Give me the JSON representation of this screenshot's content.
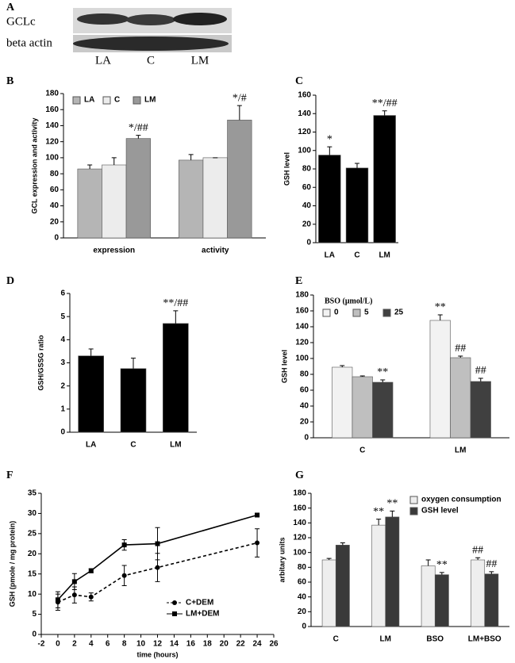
{
  "blot": {
    "panel": "A",
    "rows": [
      "GCLc",
      "beta actin"
    ],
    "lanes": [
      "LA",
      "C",
      "LM"
    ]
  },
  "chart_data": [
    {
      "type": "bar",
      "panel": "B",
      "y_label": "GCL expression and activity",
      "categories": [
        "expression",
        "activity"
      ],
      "series": [
        {
          "name": "LA",
          "color": "#b5b5b5",
          "values": [
            86,
            97
          ],
          "errors": [
            5,
            7
          ],
          "significance": [
            null,
            null
          ]
        },
        {
          "name": "C",
          "color": "#ececec",
          "values": [
            91,
            100
          ],
          "errors": [
            9,
            0
          ],
          "significance": [
            null,
            null
          ]
        },
        {
          "name": "LM",
          "color": "#999999",
          "values": [
            124,
            147
          ],
          "errors": [
            4,
            18
          ],
          "significance": [
            "*/##",
            "*/#"
          ]
        }
      ],
      "ylim": [
        0,
        180
      ],
      "yticks": [
        0,
        20,
        40,
        60,
        80,
        100,
        120,
        140,
        160,
        180
      ],
      "legend": "upper left"
    },
    {
      "type": "bar",
      "panel": "C",
      "y_label": "GSH level",
      "categories": [
        "LA",
        "C",
        "LM"
      ],
      "series": [
        {
          "color": "#000000",
          "values": [
            95,
            81,
            138
          ],
          "errors": [
            9,
            5,
            5
          ],
          "significance": [
            "*",
            null,
            "**/##"
          ]
        }
      ],
      "ylim": [
        0,
        160
      ],
      "yticks": [
        0,
        20,
        40,
        60,
        80,
        100,
        120,
        140,
        160
      ]
    },
    {
      "type": "bar",
      "panel": "D",
      "y_label": "GSH/GSSG ratio",
      "categories": [
        "LA",
        "C",
        "LM"
      ],
      "series": [
        {
          "color": "#000000",
          "values": [
            3.3,
            2.75,
            4.7
          ],
          "errors": [
            0.3,
            0.45,
            0.55
          ],
          "significance": [
            null,
            null,
            "**/##"
          ]
        }
      ],
      "ylim": [
        0,
        6
      ],
      "yticks": [
        0,
        1,
        2,
        3,
        4,
        5,
        6
      ]
    },
    {
      "type": "bar",
      "panel": "E",
      "y_label": "GSH level",
      "legend_title": "BSO (μmol/L)",
      "categories": [
        "C",
        "LM"
      ],
      "series": [
        {
          "name": "0",
          "color": "#f2f2f2",
          "values": [
            89,
            148
          ],
          "errors": [
            2,
            7
          ],
          "significance": [
            null,
            "**"
          ]
        },
        {
          "name": "5",
          "color": "#bfbfbf",
          "values": [
            77,
            101
          ],
          "errors": [
            1,
            2
          ],
          "significance": [
            null,
            "##"
          ]
        },
        {
          "name": "25",
          "color": "#404040",
          "values": [
            70,
            71
          ],
          "errors": [
            3,
            4
          ],
          "significance": [
            "**",
            "##"
          ]
        }
      ],
      "ylim": [
        0,
        180
      ],
      "yticks": [
        0,
        20,
        40,
        60,
        80,
        100,
        120,
        140,
        160,
        180
      ],
      "legend": "upper left"
    },
    {
      "type": "line",
      "panel": "F",
      "x_label": "time (hours)",
      "y_label": "GSH (pmole / mg protein)",
      "x": [
        0,
        2,
        4,
        8,
        12,
        24
      ],
      "series": [
        {
          "name": "C+DEM",
          "color": "#000000",
          "dashed": true,
          "marker": "circle",
          "values": [
            8,
            9.8,
            9.3,
            14.6,
            16.6,
            22.7
          ],
          "errors": [
            2,
            2,
            1,
            2.5,
            3.5,
            3.5
          ]
        },
        {
          "name": "LM+DEM",
          "color": "#000000",
          "dashed": false,
          "marker": "square",
          "values": [
            8.6,
            13.1,
            15.8,
            22.2,
            22.5,
            29.6
          ],
          "errors": [
            2,
            2,
            0.5,
            1.3,
            4,
            0.3
          ]
        }
      ],
      "xlim": [
        -2,
        26
      ],
      "xticks": [
        -2,
        0,
        2,
        4,
        6,
        8,
        10,
        12,
        14,
        16,
        18,
        20,
        22,
        24,
        26
      ],
      "ylim": [
        0,
        35
      ],
      "yticks": [
        0,
        5,
        10,
        15,
        20,
        25,
        30,
        35
      ],
      "legend": "lower right"
    },
    {
      "type": "bar",
      "panel": "G",
      "y_label": "arbitary units",
      "categories": [
        "C",
        "LM",
        "BSO",
        "LM+BSO"
      ],
      "series": [
        {
          "name": "oxygen consumption",
          "color": "#eeeeee",
          "values": [
            90,
            137,
            82,
            90
          ],
          "errors": [
            2,
            8,
            8,
            3
          ],
          "significance": [
            null,
            "**",
            null,
            "##"
          ]
        },
        {
          "name": "GSH level",
          "color": "#3a3a3a",
          "values": [
            110,
            148,
            70,
            71
          ],
          "errors": [
            3,
            8,
            3,
            3
          ],
          "significance": [
            null,
            "**",
            "**",
            "##"
          ]
        }
      ],
      "ylim": [
        0,
        180
      ],
      "yticks": [
        0,
        20,
        40,
        60,
        80,
        100,
        120,
        140,
        160,
        180
      ],
      "legend": "upper right"
    }
  ]
}
